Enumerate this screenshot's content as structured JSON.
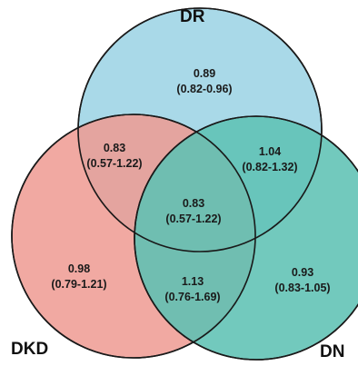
{
  "sets": {
    "dr": {
      "label": "DR",
      "color": "#a9d9e8"
    },
    "dkd": {
      "label": "DKD",
      "color": "#ef9a92"
    },
    "dn": {
      "label": "DN",
      "color": "#5fc1b4"
    }
  },
  "regions": {
    "dr_only": {
      "estimate": "0.89",
      "ci": "(0.82-0.96)"
    },
    "dr_dkd": {
      "estimate": "0.83",
      "ci": "(0.57-1.22)"
    },
    "dr_dn": {
      "estimate": "1.04",
      "ci": "(0.82-1.32)"
    },
    "all": {
      "estimate": "0.83",
      "ci": "(0.57-1.22)"
    },
    "dkd_only": {
      "estimate": "0.98",
      "ci": "(0.79-1.21)"
    },
    "dkd_dn": {
      "estimate": "1.13",
      "ci": "(0.76-1.69)"
    },
    "dn_only": {
      "estimate": "0.93",
      "ci": "(0.83-1.05)"
    }
  }
}
